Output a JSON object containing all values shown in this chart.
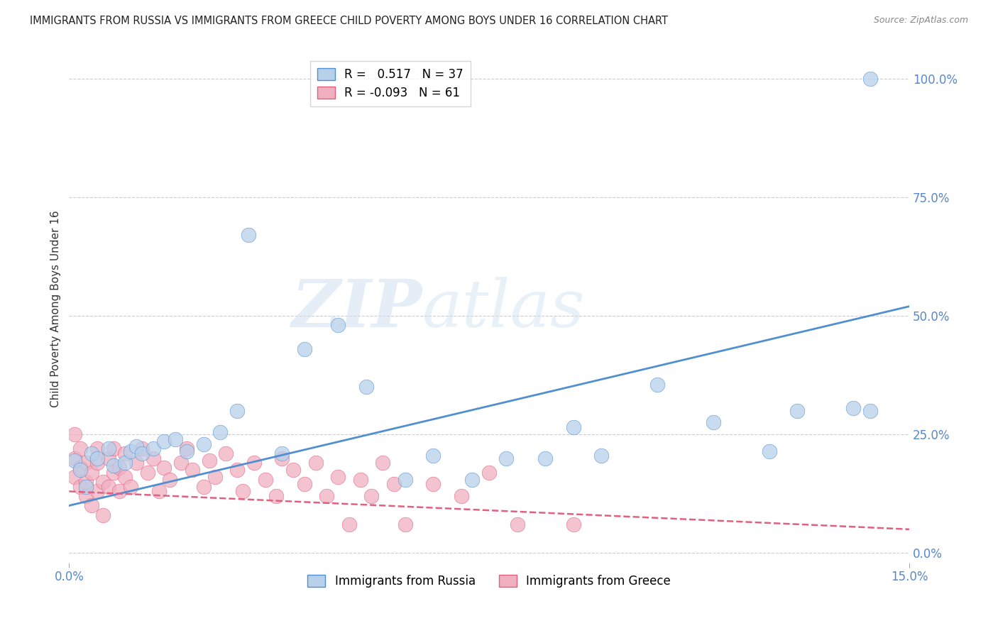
{
  "title": "IMMIGRANTS FROM RUSSIA VS IMMIGRANTS FROM GREECE CHILD POVERTY AMONG BOYS UNDER 16 CORRELATION CHART",
  "source": "Source: ZipAtlas.com",
  "ylabel": "Child Poverty Among Boys Under 16",
  "xlim": [
    0.0,
    0.15
  ],
  "ylim": [
    -0.02,
    1.05
  ],
  "xticks": [
    0.0,
    0.15
  ],
  "xticklabels": [
    "0.0%",
    "15.0%"
  ],
  "yticks": [
    0.0,
    0.25,
    0.5,
    0.75,
    1.0
  ],
  "yticklabels": [
    "0.0%",
    "25.0%",
    "50.0%",
    "75.0%",
    "100.0%"
  ],
  "russia_R": 0.517,
  "russia_N": 37,
  "greece_R": -0.093,
  "greece_N": 61,
  "russia_color": "#b8d0ea",
  "russia_line_color": "#5090d0",
  "greece_color": "#f0b0c0",
  "greece_line_color": "#e06080",
  "watermark_zip": "ZIP",
  "watermark_atlas": "atlas",
  "russia_points_x": [
    0.001,
    0.002,
    0.003,
    0.004,
    0.005,
    0.007,
    0.008,
    0.01,
    0.011,
    0.012,
    0.013,
    0.015,
    0.017,
    0.019,
    0.021,
    0.024,
    0.027,
    0.03,
    0.032,
    0.038,
    0.042,
    0.048,
    0.053,
    0.06,
    0.065,
    0.072,
    0.078,
    0.085,
    0.09,
    0.095,
    0.105,
    0.115,
    0.125,
    0.13,
    0.14,
    0.143,
    0.143
  ],
  "russia_points_y": [
    0.195,
    0.175,
    0.14,
    0.21,
    0.2,
    0.22,
    0.185,
    0.19,
    0.215,
    0.225,
    0.21,
    0.22,
    0.235,
    0.24,
    0.215,
    0.23,
    0.255,
    0.3,
    0.67,
    0.21,
    0.43,
    0.48,
    0.35,
    0.155,
    0.205,
    0.155,
    0.2,
    0.2,
    0.265,
    0.205,
    0.355,
    0.275,
    0.215,
    0.3,
    0.305,
    0.3,
    1.0
  ],
  "greece_points_x": [
    0.001,
    0.001,
    0.001,
    0.002,
    0.002,
    0.002,
    0.003,
    0.003,
    0.003,
    0.004,
    0.004,
    0.005,
    0.005,
    0.005,
    0.006,
    0.006,
    0.007,
    0.007,
    0.008,
    0.008,
    0.009,
    0.009,
    0.01,
    0.01,
    0.011,
    0.012,
    0.013,
    0.014,
    0.015,
    0.016,
    0.017,
    0.018,
    0.02,
    0.021,
    0.022,
    0.024,
    0.025,
    0.026,
    0.028,
    0.03,
    0.031,
    0.033,
    0.035,
    0.037,
    0.038,
    0.04,
    0.042,
    0.044,
    0.046,
    0.048,
    0.05,
    0.052,
    0.054,
    0.056,
    0.058,
    0.06,
    0.065,
    0.07,
    0.075,
    0.08,
    0.09
  ],
  "greece_points_y": [
    0.2,
    0.16,
    0.25,
    0.18,
    0.14,
    0.22,
    0.12,
    0.19,
    0.15,
    0.1,
    0.17,
    0.22,
    0.13,
    0.19,
    0.15,
    0.08,
    0.2,
    0.14,
    0.17,
    0.22,
    0.13,
    0.18,
    0.16,
    0.21,
    0.14,
    0.19,
    0.22,
    0.17,
    0.2,
    0.13,
    0.18,
    0.155,
    0.19,
    0.22,
    0.175,
    0.14,
    0.195,
    0.16,
    0.21,
    0.175,
    0.13,
    0.19,
    0.155,
    0.12,
    0.2,
    0.175,
    0.145,
    0.19,
    0.12,
    0.16,
    0.06,
    0.155,
    0.12,
    0.19,
    0.145,
    0.06,
    0.145,
    0.12,
    0.17,
    0.06,
    0.06
  ],
  "russia_trend_x": [
    0.0,
    0.15
  ],
  "russia_trend_y": [
    0.1,
    0.52
  ],
  "greece_trend_x": [
    0.0,
    0.15
  ],
  "greece_trend_y": [
    0.13,
    0.05
  ],
  "background_color": "#ffffff",
  "grid_color": "#cccccc",
  "title_color": "#222222",
  "axis_color": "#5588cc"
}
